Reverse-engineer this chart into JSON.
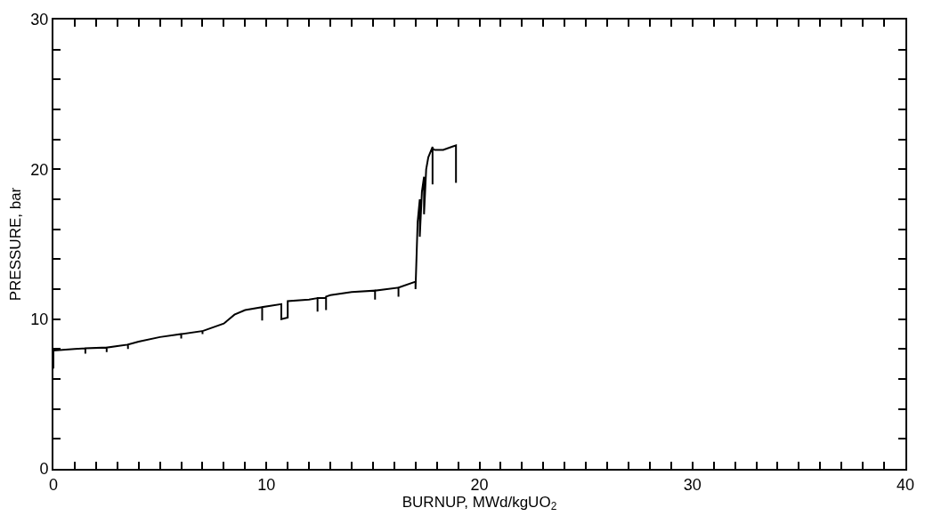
{
  "chart_data": {
    "type": "line",
    "xlabel": "BURNUP, MWd/kgUO$_{2}$",
    "ylabel": "PRESSURE, bar",
    "xlim": [
      0,
      40
    ],
    "ylim": [
      0,
      30
    ],
    "xticks": [
      0,
      {
        "value": 1,
        "label": null
      },
      {
        "value": 2,
        "label": null
      },
      {
        "value": 3,
        "label": null
      },
      {
        "value": 4,
        "label": null
      },
      {
        "value": 5,
        "label": null
      },
      {
        "value": 6,
        "label": null
      },
      {
        "value": 7,
        "label": null
      },
      {
        "value": 8,
        "label": null
      },
      {
        "value": 9,
        "label": null
      },
      10,
      {
        "value": 11,
        "label": null
      },
      {
        "value": 12,
        "label": null
      },
      {
        "value": 13,
        "label": null
      },
      {
        "value": 14,
        "label": null
      },
      {
        "value": 15,
        "label": null
      },
      {
        "value": 16,
        "label": null
      },
      {
        "value": 17,
        "label": null
      },
      {
        "value": 18,
        "label": null
      },
      {
        "value": 19,
        "label": null
      },
      20,
      {
        "value": 21,
        "label": null
      },
      {
        "value": 22,
        "label": null
      },
      {
        "value": 23,
        "label": null
      },
      {
        "value": 24,
        "label": null
      },
      {
        "value": 25,
        "label": null
      },
      {
        "value": 26,
        "label": null
      },
      {
        "value": 27,
        "label": null
      },
      {
        "value": 28,
        "label": null
      },
      {
        "value": 29,
        "label": null
      },
      30,
      {
        "value": 31,
        "label": null
      },
      {
        "value": 32,
        "label": null
      },
      {
        "value": 33,
        "label": null
      },
      {
        "value": 34,
        "label": null
      },
      {
        "value": 35,
        "label": null
      },
      {
        "value": 36,
        "label": null
      },
      {
        "value": 37,
        "label": null
      },
      {
        "value": 38,
        "label": null
      },
      {
        "value": 39,
        "label": null
      },
      40
    ],
    "yticks": [
      0,
      {
        "value": 2,
        "label": null
      },
      {
        "value": 4,
        "label": null
      },
      {
        "value": 6,
        "label": null
      },
      {
        "value": 8,
        "label": null
      },
      10,
      {
        "value": 12,
        "label": null
      },
      {
        "value": 14,
        "label": null
      },
      {
        "value": 16,
        "label": null
      },
      {
        "value": 18,
        "label": null
      },
      20,
      {
        "value": 22,
        "label": null
      },
      {
        "value": 24,
        "label": null
      },
      {
        "value": 26,
        "label": null
      },
      {
        "value": 28,
        "label": null
      },
      30
    ],
    "marker": "none",
    "line_style": "solid",
    "series": [
      {
        "color": "#000000",
        "x": [
          0,
          0,
          1,
          1.5,
          1.5,
          1.5,
          2.5,
          2.5,
          2.5,
          3,
          3.5,
          3.5,
          3.5,
          4,
          5,
          6,
          6,
          6,
          7,
          7,
          7,
          8,
          8.5,
          9,
          9.8,
          9.8,
          9.8,
          10.7,
          10.7,
          11,
          11,
          12,
          12.4,
          12.4,
          12.4,
          12.8,
          12.8,
          12.8,
          13,
          14,
          15.1,
          15.1,
          15.1,
          16.2,
          16.2,
          16.2,
          17,
          17,
          17.1,
          17.2,
          17.2,
          17.3,
          17.4,
          17.4,
          17.5,
          17.6,
          17.8,
          17.8,
          17.8,
          17.9,
          18.3,
          18.9,
          18.9
        ],
        "values": [
          6.7,
          7.9,
          8.0,
          8.05,
          7.7,
          8.05,
          8.1,
          7.8,
          8.1,
          8.2,
          8.3,
          8.0,
          8.3,
          8.5,
          8.8,
          9.0,
          8.7,
          9.0,
          9.2,
          9.0,
          9.2,
          9.7,
          10.3,
          10.6,
          10.8,
          9.9,
          10.8,
          11.0,
          10.0,
          10.1,
          11.2,
          11.3,
          11.4,
          10.5,
          11.4,
          11.4,
          10.6,
          11.5,
          11.6,
          11.8,
          11.9,
          11.3,
          11.9,
          12.1,
          11.5,
          12.1,
          12.5,
          12.0,
          16.5,
          18.0,
          15.5,
          18.5,
          19.5,
          17.0,
          20.0,
          20.8,
          21.5,
          19.0,
          21.4,
          21.3,
          21.3,
          21.6,
          19.1
        ]
      }
    ]
  }
}
